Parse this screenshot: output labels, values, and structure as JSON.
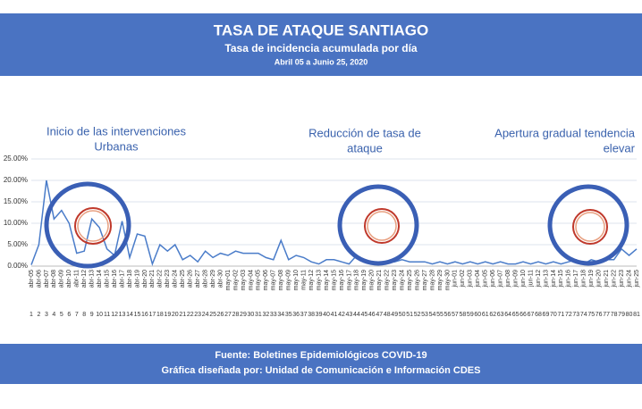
{
  "chart_data": {
    "type": "line",
    "title": "TASA DE ATAQUE SANTIAGO",
    "subtitle": "Tasa de incidencia acumulada por día",
    "date_range": "Abril 05 a Junio 25, 2020",
    "annotations": [
      [
        "Inicio de las intervenciones",
        "Urbanas"
      ],
      [
        "Reducción de tasa de",
        "ataque"
      ],
      [
        "Apertura gradual tendencia",
        "elevar"
      ]
    ],
    "footer": [
      "Fuente: Boletines Epidemiológicos COVID-19",
      "Gráfica diseñada por: Unidad de Comunicación e Información CDES"
    ],
    "categories": [
      "abr-05",
      "abr-06",
      "abr-07",
      "abr-08",
      "abr-09",
      "abr-10",
      "abr-11",
      "abr-12",
      "abr-13",
      "abr-14",
      "abr-15",
      "abr-16",
      "abr-17",
      "abr-18",
      "abr-19",
      "abr-20",
      "abr-21",
      "abr-22",
      "abr-23",
      "abr-24",
      "abr-25",
      "abr-26",
      "abr-27",
      "abr-28",
      "abr-29",
      "abr-30",
      "may-01",
      "may-02",
      "may-03",
      "may-04",
      "may-05",
      "may-06",
      "may-07",
      "may-08",
      "may-09",
      "may-10",
      "may-11",
      "may-12",
      "may-13",
      "may-14",
      "may-15",
      "may-16",
      "may-17",
      "may-18",
      "may-19",
      "may-20",
      "may-21",
      "may-22",
      "may-23",
      "may-24",
      "may-25",
      "may-26",
      "may-27",
      "may-28",
      "may-29",
      "may-30",
      "jun-01",
      "jun-02",
      "jun-03",
      "jun-04",
      "jun-05",
      "jun-06",
      "jun-07",
      "jun-08",
      "jun-09",
      "jun-10",
      "jun-11",
      "jun-12",
      "jun-13",
      "jun-14",
      "jun-15",
      "jun-16",
      "jun-17",
      "jun-18",
      "jun-19",
      "jun-20",
      "jun-21",
      "jun-22",
      "jun-23",
      "jun-24",
      "jun-25"
    ],
    "day_numbers": [
      1,
      2,
      3,
      4,
      5,
      6,
      7,
      8,
      9,
      10,
      11,
      12,
      13,
      14,
      15,
      16,
      17,
      18,
      19,
      20,
      21,
      22,
      23,
      24,
      25,
      26,
      27,
      28,
      29,
      30,
      31,
      32,
      33,
      34,
      35,
      36,
      37,
      38,
      39,
      40,
      41,
      42,
      43,
      44,
      45,
      46,
      47,
      48,
      49,
      50,
      51,
      52,
      53,
      54,
      55,
      56,
      57,
      58,
      59,
      60,
      61,
      62,
      63,
      64,
      65,
      66,
      67,
      68,
      69,
      70,
      71,
      72,
      73,
      74,
      75,
      76,
      77,
      78,
      79,
      80,
      81
    ],
    "values": [
      0.3,
      5,
      20,
      11,
      13,
      10,
      3,
      3.5,
      11,
      9,
      4,
      2.5,
      10.5,
      2,
      7.5,
      7,
      0.5,
      5,
      3.5,
      5,
      1.5,
      2.5,
      1,
      3.5,
      2,
      3,
      2.5,
      3.5,
      3,
      3,
      3,
      2,
      1.5,
      6,
      1.5,
      2.5,
      2,
      1,
      0.5,
      1.5,
      1.5,
      1,
      0.5,
      2.5,
      1,
      0.5,
      0.5,
      1,
      1,
      1.5,
      1,
      1,
      1,
      0.5,
      1,
      0.5,
      1,
      0.5,
      1,
      0.5,
      1,
      0.5,
      1,
      0.5,
      0.5,
      1,
      0.5,
      1,
      0.5,
      1,
      0.5,
      1,
      1.5,
      0.5,
      1.5,
      1,
      1.5,
      1.5,
      4,
      2.5,
      4
    ],
    "color": "#4a7cc9",
    "ylim": [
      0,
      25
    ],
    "yticks": [
      {
        "value": 0,
        "label": "0.00%"
      },
      {
        "value": 5,
        "label": "5.00%"
      },
      {
        "value": 10,
        "label": "10.00%"
      },
      {
        "value": 15,
        "label": "15.00%"
      },
      {
        "value": 20,
        "label": "20.00%"
      },
      {
        "value": 25,
        "label": "25.00%"
      }
    ],
    "grid": true
  }
}
